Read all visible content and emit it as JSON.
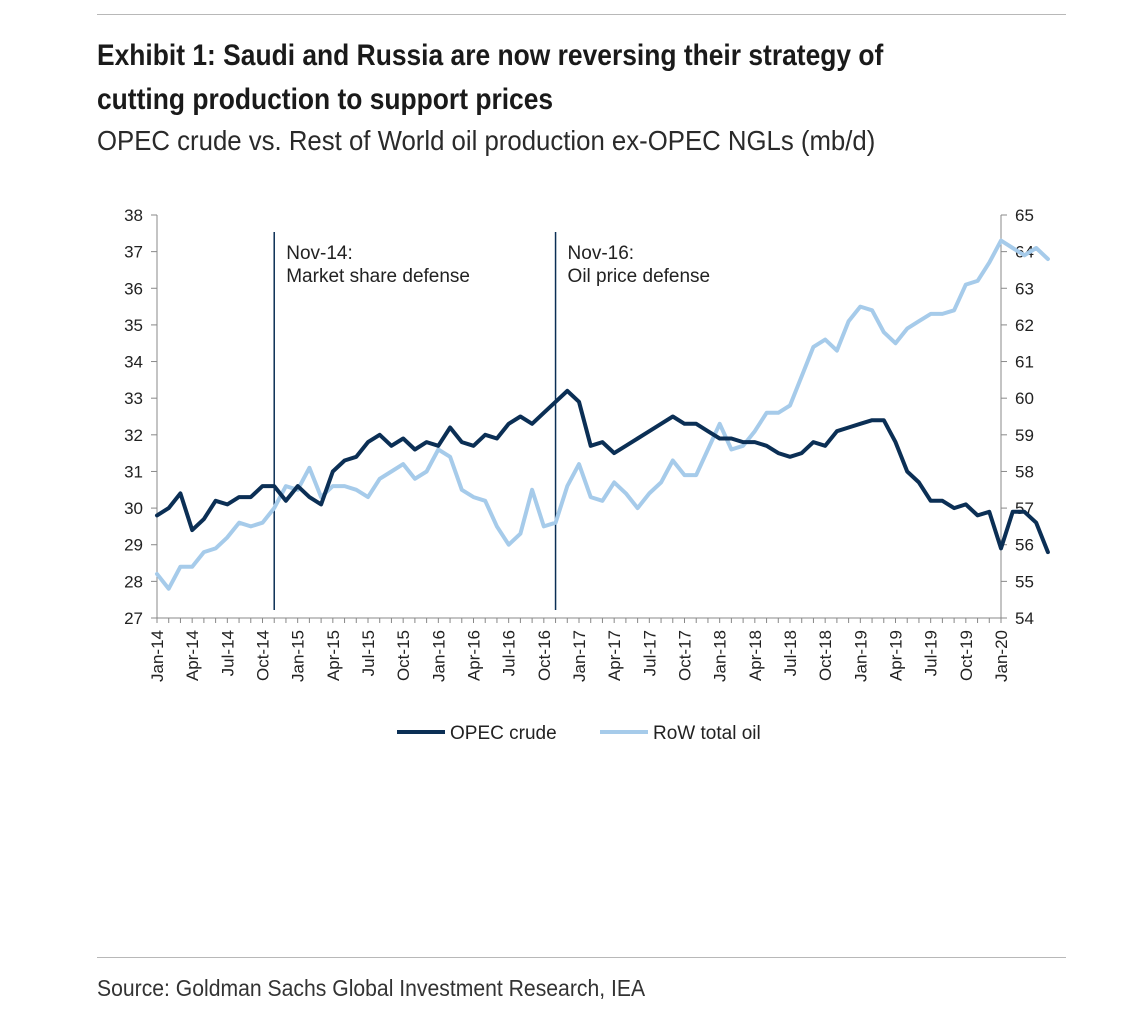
{
  "header": {
    "title_line1": "Exhibit 1: Saudi and Russia are now reversing their strategy of",
    "title_line2": "cutting production to support prices",
    "subtitle": "OPEC crude vs. Rest of World oil production ex-OPEC NGLs (mb/d)"
  },
  "footer": {
    "source": "Source: Goldman Sachs Global Investment Research, IEA"
  },
  "colors": {
    "opec": "#0b2f55",
    "row": "#a6cbea",
    "axis": "#888888",
    "text": "#222222"
  },
  "chart_data": {
    "type": "line",
    "title": "",
    "x_start": "Jan-14",
    "x_end": "Jan-20",
    "x_tick_labels": [
      "Jan-14",
      "Apr-14",
      "Jul-14",
      "Oct-14",
      "Jan-15",
      "Apr-15",
      "Jul-15",
      "Oct-15",
      "Jan-16",
      "Apr-16",
      "Jul-16",
      "Oct-16",
      "Jan-17",
      "Apr-17",
      "Jul-17",
      "Oct-17",
      "Jan-18",
      "Apr-18",
      "Jul-18",
      "Oct-18",
      "Jan-19",
      "Apr-19",
      "Jul-19",
      "Oct-19",
      "Jan-20"
    ],
    "y_left": {
      "min": 27,
      "max": 38,
      "step": 1
    },
    "y_right": {
      "min": 54,
      "max": 65,
      "step": 1
    },
    "grid": false,
    "legend_position": "bottom",
    "annotations": [
      {
        "x": "Nov-14",
        "label_line1": "Nov-14:",
        "label_line2": "Market share defense"
      },
      {
        "x": "Nov-16",
        "label_line1": "Nov-16:",
        "label_line2": "Oil price defense"
      }
    ],
    "series": [
      {
        "name": "OPEC crude",
        "axis": "left",
        "values": [
          29.8,
          30.0,
          30.4,
          29.4,
          29.7,
          30.2,
          30.1,
          30.3,
          30.3,
          30.6,
          30.6,
          30.2,
          30.6,
          30.3,
          30.1,
          31.0,
          31.3,
          31.4,
          31.8,
          32.0,
          31.7,
          31.9,
          31.6,
          31.8,
          31.7,
          32.2,
          31.8,
          31.7,
          32.0,
          31.9,
          32.3,
          32.5,
          32.3,
          32.6,
          32.9,
          33.2,
          32.9,
          31.7,
          31.8,
          31.5,
          31.7,
          31.9,
          32.1,
          32.3,
          32.5,
          32.3,
          32.3,
          32.1,
          31.9,
          31.9,
          31.8,
          31.8,
          31.7,
          31.5,
          31.4,
          31.5,
          31.8,
          31.7,
          32.1,
          32.2,
          32.3,
          32.4,
          32.4,
          31.8,
          31.0,
          30.7,
          30.2,
          30.2,
          30.0,
          30.1,
          29.8,
          29.9,
          28.9,
          29.9,
          29.9,
          29.6,
          28.8
        ],
        "line_width": "thick"
      },
      {
        "name": "RoW total oil",
        "axis": "right",
        "values": [
          55.2,
          54.8,
          55.4,
          55.4,
          55.8,
          55.9,
          56.2,
          56.6,
          56.5,
          56.6,
          57.0,
          57.6,
          57.5,
          58.1,
          57.3,
          57.6,
          57.6,
          57.5,
          57.3,
          57.8,
          58.0,
          58.2,
          57.8,
          58.0,
          58.6,
          58.4,
          57.5,
          57.3,
          57.2,
          56.5,
          56.0,
          56.3,
          57.5,
          56.5,
          56.6,
          57.6,
          58.2,
          57.3,
          57.2,
          57.7,
          57.4,
          57.0,
          57.4,
          57.7,
          58.3,
          57.9,
          57.9,
          58.6,
          59.3,
          58.6,
          58.7,
          59.1,
          59.6,
          59.6,
          59.8,
          60.6,
          61.4,
          61.6,
          61.3,
          62.1,
          62.5,
          62.4,
          61.8,
          61.5,
          61.9,
          62.1,
          62.3,
          62.3,
          62.4,
          63.1,
          63.2,
          63.7,
          64.3,
          64.1,
          63.9,
          64.1,
          63.8
        ],
        "line_width": "thick"
      }
    ]
  }
}
